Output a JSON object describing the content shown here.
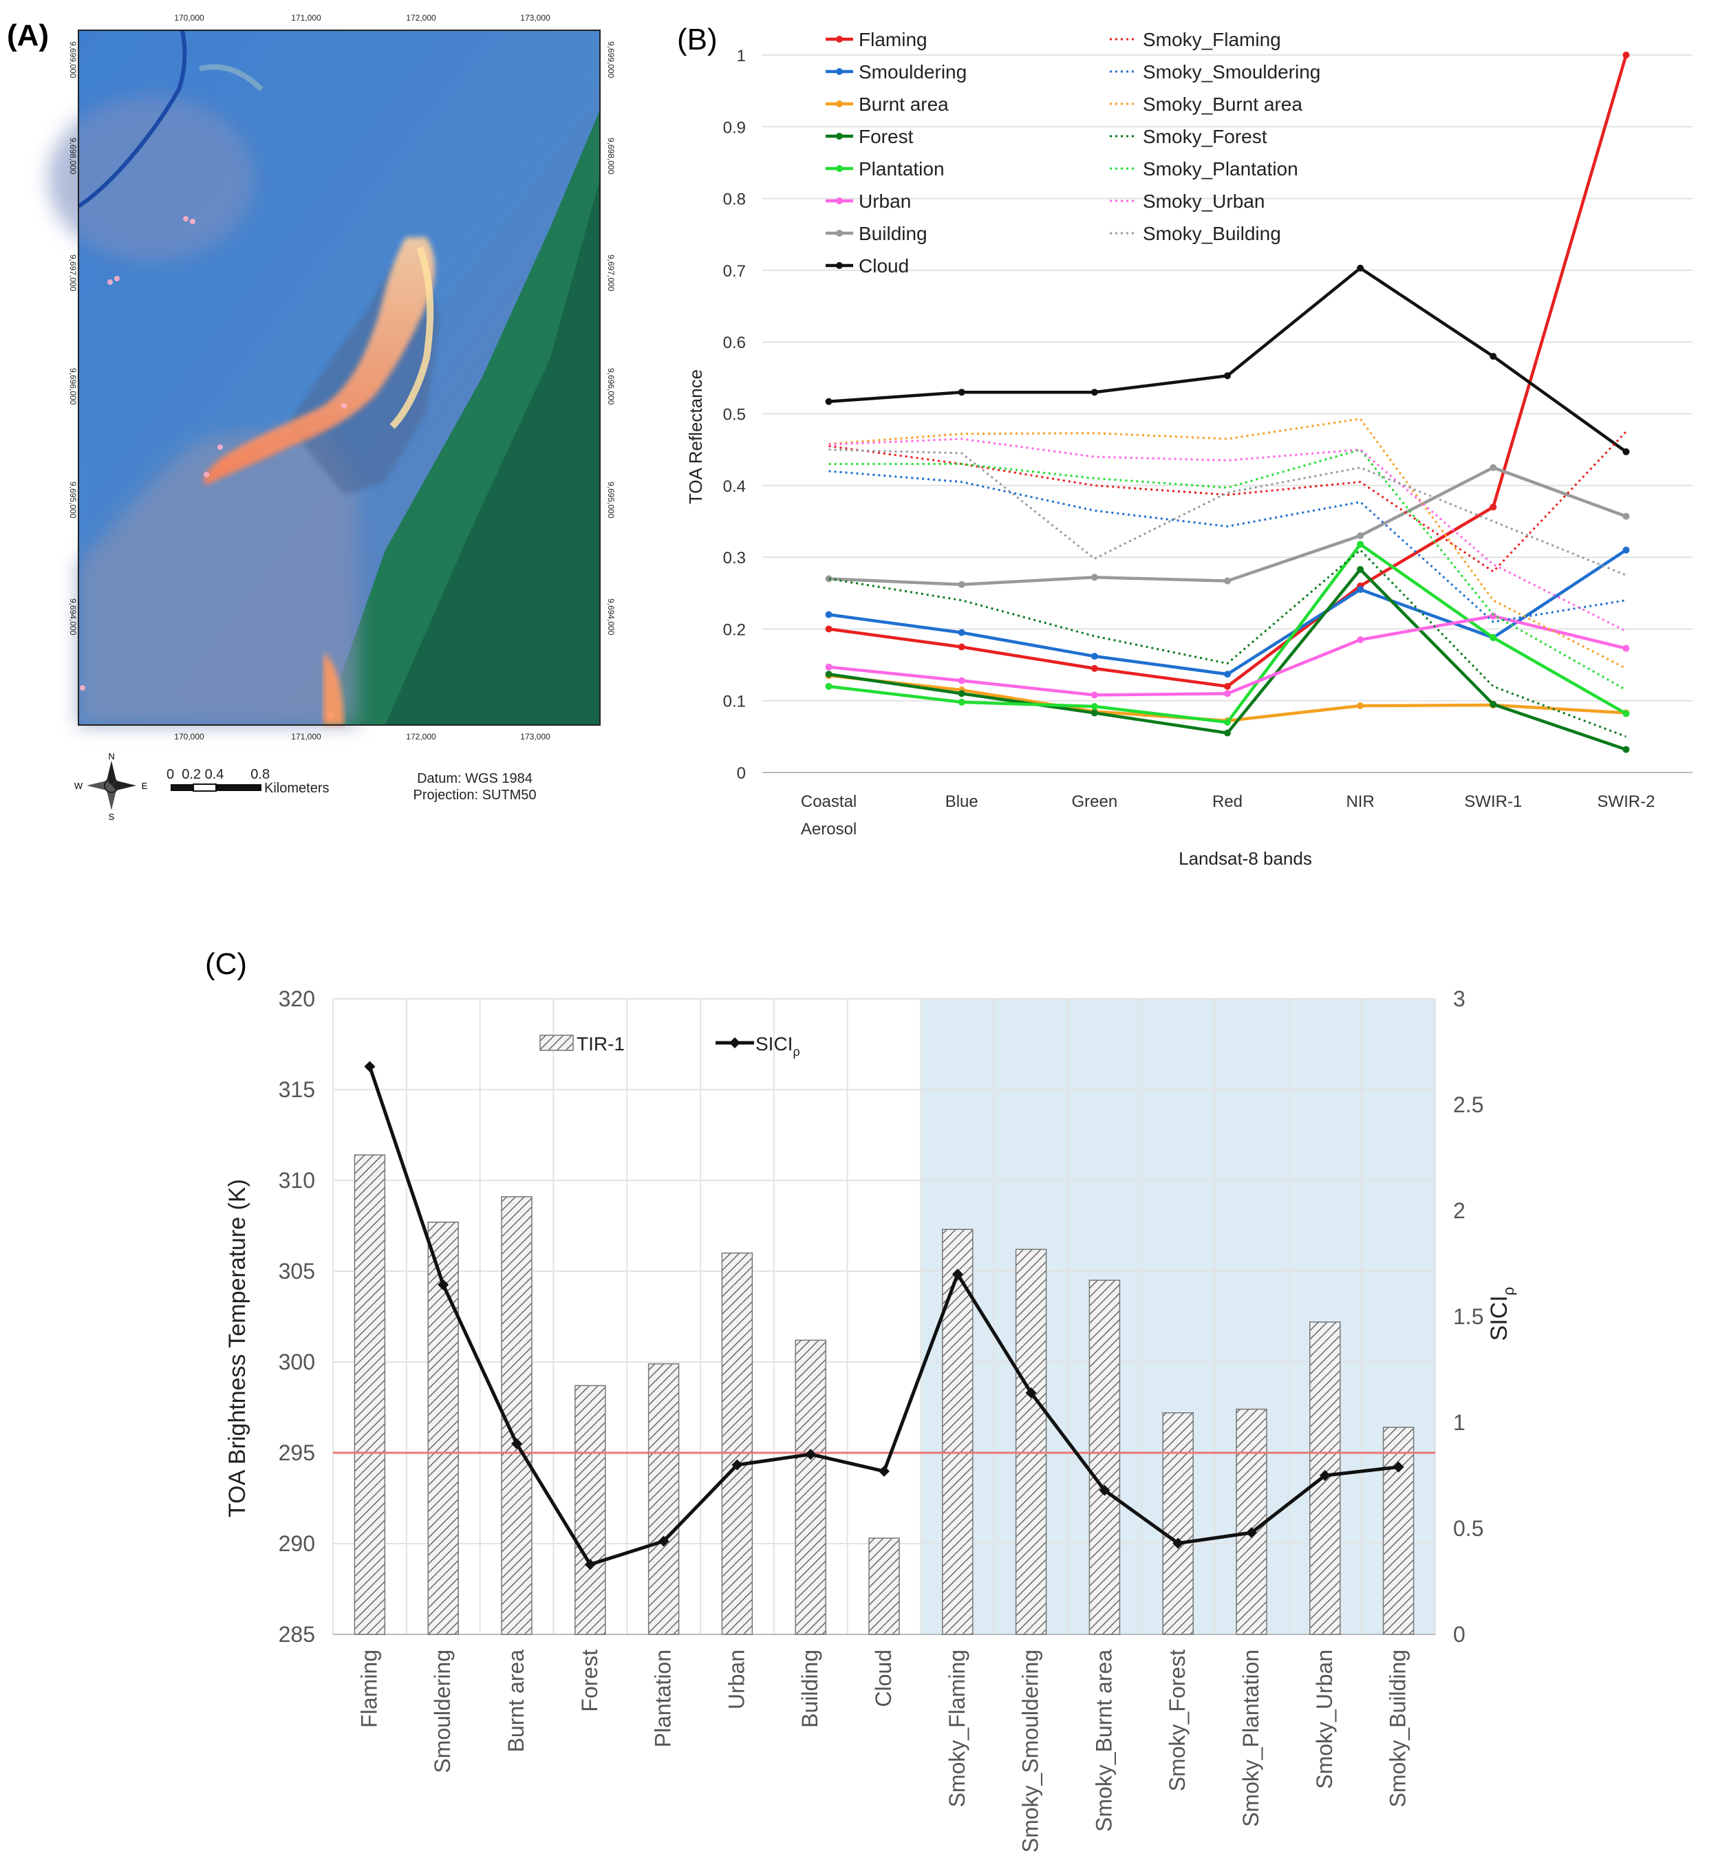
{
  "panel_a": {
    "label": "(A)",
    "x_ticks": [
      "170,000",
      "171,000",
      "172,000",
      "173,000"
    ],
    "y_ticks": [
      "9,698,000",
      "9,697,000",
      "9,696,000",
      "9,695,000",
      "9,694,000",
      "9,699,000"
    ],
    "scale_numbers": "0  0.2 0.4       0.8",
    "scale_unit": "Kilometers",
    "north": "N",
    "south": "S",
    "west": "W",
    "east": "E",
    "datum": "Datum: WGS 1984",
    "projection": "Projection: SUTM50"
  },
  "chart_data": [
    {
      "id": "B",
      "label": "(B)",
      "type": "line",
      "xlabel": "Landsat-8 bands",
      "ylabel": "TOA Reflectance",
      "categories": [
        "Coastal Aerosol",
        "Blue",
        "Green",
        "Red",
        "NIR",
        "SWIR-1",
        "SWIR-2"
      ],
      "category_lines": [
        [
          "Coastal",
          "Aerosol"
        ],
        [
          "Blue"
        ],
        [
          "Green"
        ],
        [
          "Red"
        ],
        [
          "NIR"
        ],
        [
          "SWIR-1"
        ],
        [
          "SWIR-2"
        ]
      ],
      "ylim": [
        0,
        1
      ],
      "yticks": [
        "0",
        "0.1",
        "0.2",
        "0.3",
        "0.4",
        "0.5",
        "0.6",
        "0.7",
        "0.8",
        "0.9",
        "1"
      ],
      "series": [
        {
          "name": "Flaming",
          "color": "#e82020",
          "style": "solid",
          "values": [
            0.2,
            0.175,
            0.145,
            0.12,
            0.26,
            0.37,
            1.0
          ]
        },
        {
          "name": "Smouldering",
          "color": "#1f6fd0",
          "style": "solid",
          "values": [
            0.22,
            0.195,
            0.162,
            0.137,
            0.255,
            0.188,
            0.31
          ]
        },
        {
          "name": "Burnt area",
          "color": "#f5a020",
          "style": "solid",
          "values": [
            0.135,
            0.115,
            0.085,
            0.072,
            0.093,
            0.094,
            0.083
          ]
        },
        {
          "name": "Forest",
          "color": "#0a7a1a",
          "style": "solid",
          "values": [
            0.137,
            0.11,
            0.083,
            0.055,
            0.283,
            0.095,
            0.032
          ]
        },
        {
          "name": "Plantation",
          "color": "#22dd33",
          "style": "solid",
          "values": [
            0.12,
            0.098,
            0.092,
            0.07,
            0.318,
            0.188,
            0.082
          ]
        },
        {
          "name": "Urban",
          "color": "#ff66e6",
          "style": "solid",
          "values": [
            0.147,
            0.128,
            0.108,
            0.11,
            0.185,
            0.218,
            0.173
          ]
        },
        {
          "name": "Building",
          "color": "#999999",
          "style": "solid",
          "values": [
            0.27,
            0.262,
            0.272,
            0.267,
            0.33,
            0.425,
            0.357
          ]
        },
        {
          "name": "Cloud",
          "color": "#111111",
          "style": "solid",
          "values": [
            0.517,
            0.53,
            0.53,
            0.553,
            0.703,
            0.58,
            0.447
          ]
        },
        {
          "name": "Smoky_Flaming",
          "color": "#e82020",
          "style": "dotted",
          "values": [
            0.455,
            0.43,
            0.4,
            0.387,
            0.405,
            0.28,
            0.475
          ]
        },
        {
          "name": "Smoky_Smouldering",
          "color": "#1f6fd0",
          "style": "dotted",
          "values": [
            0.42,
            0.405,
            0.365,
            0.343,
            0.377,
            0.21,
            0.24
          ]
        },
        {
          "name": "Smoky_Burnt area",
          "color": "#f5a020",
          "style": "dotted",
          "values": [
            0.458,
            0.472,
            0.473,
            0.465,
            0.493,
            0.24,
            0.145
          ]
        },
        {
          "name": "Smoky_Forest",
          "color": "#0a7a1a",
          "style": "dotted",
          "values": [
            0.27,
            0.24,
            0.19,
            0.152,
            0.31,
            0.12,
            0.05
          ]
        },
        {
          "name": "Smoky_Plantation",
          "color": "#22dd33",
          "style": "dotted",
          "values": [
            0.43,
            0.43,
            0.41,
            0.397,
            0.45,
            0.22,
            0.115
          ]
        },
        {
          "name": "Smoky_Urban",
          "color": "#ff66e6",
          "style": "dotted",
          "values": [
            0.457,
            0.465,
            0.44,
            0.435,
            0.45,
            0.29,
            0.197
          ]
        },
        {
          "name": "Smoky_Building",
          "color": "#999999",
          "style": "dotted",
          "values": [
            0.45,
            0.445,
            0.298,
            0.39,
            0.425,
            0.35,
            0.275
          ]
        }
      ]
    },
    {
      "id": "C",
      "label": "(C)",
      "type": "bar",
      "ylabel": "TOA Brightness Temperature (K)",
      "y2label": "SICI",
      "y2label_sub": "ρ",
      "ylim": [
        285,
        320
      ],
      "y2lim": [
        0,
        3
      ],
      "yticks": [
        "285",
        "290",
        "295",
        "300",
        "305",
        "310",
        "315",
        "320"
      ],
      "y2ticks": [
        "0",
        "0.5",
        "1",
        "1.5",
        "2",
        "2.5",
        "3"
      ],
      "categories": [
        "Flaming",
        "Smouldering",
        "Burnt area",
        "Forest",
        "Plantation",
        "Urban",
        "Building",
        "Cloud",
        "Smoky_Flaming",
        "Smoky_Smouldering",
        "Smoky_Burnt area",
        "Smoky_Forest",
        "Smoky_Plantation",
        "Smoky_Urban",
        "Smoky_Building"
      ],
      "series": [
        {
          "name": "TIR-1",
          "type": "bar",
          "values": [
            311.4,
            307.7,
            309.1,
            298.7,
            299.9,
            306.0,
            301.2,
            290.3,
            307.3,
            306.2,
            304.5,
            297.2,
            297.4,
            302.2,
            296.4
          ]
        },
        {
          "name": "SICI",
          "name_sub": "ρ",
          "type": "line",
          "axis": "right",
          "values": [
            2.68,
            1.65,
            0.9,
            0.33,
            0.44,
            0.8,
            0.85,
            0.77,
            1.7,
            1.14,
            0.68,
            0.43,
            0.48,
            0.75,
            0.79
          ]
        }
      ],
      "threshold_line": {
        "value": 295,
        "color": "#e87878"
      },
      "shaded_region": {
        "from_category": "Smoky_Flaming",
        "to_category": "Smoky_Building",
        "color": "#dcebf4"
      }
    }
  ]
}
